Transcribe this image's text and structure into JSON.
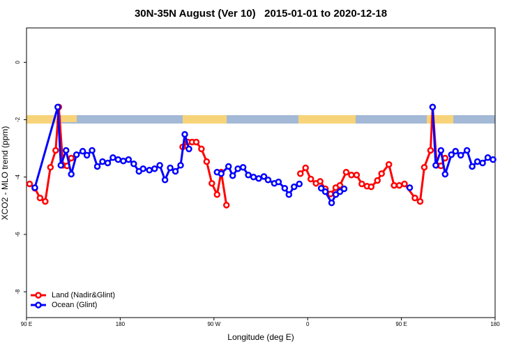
{
  "chart_data": {
    "type": "line",
    "title": "30N-35N August (Ver 10)   2015-01-01 to 2020-12-18",
    "x_label": "Longitude (deg E)",
    "y_label": "XCO2 - MLO trend (ppm)",
    "xlim": [
      90,
      540
    ],
    "ylim": [
      -8.9,
      1.2
    ],
    "xticks": [
      {
        "value": 90,
        "label": "90 E"
      },
      180,
      {
        "value": 270,
        "label": "90 W"
      },
      {
        "value": 360,
        "label": "0"
      },
      {
        "value": 450,
        "label": "90 E"
      },
      {
        "value": 540,
        "label": "180"
      }
    ],
    "yticks": [
      0,
      -2,
      -4,
      -6,
      -8
    ],
    "legend": "bottom-left",
    "series": [
      {
        "name": "Land (Nadir&Glint)",
        "color": "#ff0000",
        "x": [
          93,
          98,
          103,
          108,
          113,
          118,
          121,
          125,
          129,
          133,
          null,
          240,
          245,
          249,
          253,
          258,
          263,
          268,
          273,
          277,
          282,
          null,
          353,
          358,
          363,
          368,
          372,
          377,
          382,
          387,
          391,
          397,
          402,
          407,
          412,
          417,
          421,
          427,
          431,
          438,
          443,
          448,
          453,
          463,
          468,
          472,
          478,
          480,
          484,
          488,
          492
        ],
        "values": [
          -4.24,
          -4.39,
          -4.73,
          -4.85,
          -3.66,
          -3.07,
          -1.56,
          -3.59,
          -3.61,
          -3.34,
          null,
          -2.95,
          -2.78,
          -2.78,
          -2.78,
          -3.02,
          -3.46,
          -4.22,
          -4.61,
          -3.83,
          -4.98,
          null,
          -3.88,
          -3.68,
          -4.07,
          -4.22,
          -4.15,
          -4.41,
          -4.59,
          -4.37,
          -4.29,
          -3.83,
          -3.93,
          -3.93,
          -4.24,
          -4.32,
          -4.34,
          -4.12,
          -3.88,
          -3.56,
          -4.29,
          -4.29,
          -4.24,
          -4.73,
          -4.85,
          -3.66,
          -3.07,
          -1.56,
          -3.59,
          -3.61,
          -3.34
        ]
      },
      {
        "name": "Ocean (Glint)",
        "color": "#0000ff",
        "x": [
          98,
          120,
          123,
          128,
          133,
          138,
          144,
          148,
          153,
          158,
          163,
          168,
          173,
          178,
          183,
          188,
          193,
          198,
          202,
          208,
          213,
          218,
          223,
          228,
          233,
          238,
          242,
          246,
          null,
          273,
          277,
          284,
          288,
          293,
          298,
          303,
          308,
          313,
          318,
          322,
          328,
          332,
          338,
          342,
          347,
          352,
          null,
          373,
          377,
          383,
          387,
          391,
          395,
          null,
          458,
          null,
          480,
          483,
          488,
          492,
          498,
          502,
          507,
          513,
          518,
          523,
          528,
          533,
          538
        ],
        "values": [
          -4.37,
          -1.56,
          -3.59,
          -3.07,
          -3.9,
          -3.22,
          -3.1,
          -3.24,
          -3.07,
          -3.63,
          -3.46,
          -3.51,
          -3.32,
          -3.39,
          -3.44,
          -3.39,
          -3.54,
          -3.8,
          -3.71,
          -3.76,
          -3.71,
          -3.59,
          -4.1,
          -3.68,
          -3.8,
          -3.59,
          -2.51,
          -3.02,
          null,
          -3.83,
          -3.88,
          -3.63,
          -3.95,
          -3.71,
          -3.66,
          -3.93,
          -4.0,
          -4.05,
          -3.98,
          -4.1,
          -4.22,
          -4.17,
          -4.39,
          -4.61,
          -4.34,
          -4.24,
          null,
          -4.39,
          -4.51,
          -4.9,
          -4.61,
          -4.51,
          -4.41,
          null,
          -4.37,
          null,
          -1.56,
          -3.59,
          -3.07,
          -3.9,
          -3.22,
          -3.1,
          -3.24,
          -3.07,
          -3.63,
          -3.46,
          -3.51,
          -3.32,
          -3.39
        ]
      }
    ]
  }
}
